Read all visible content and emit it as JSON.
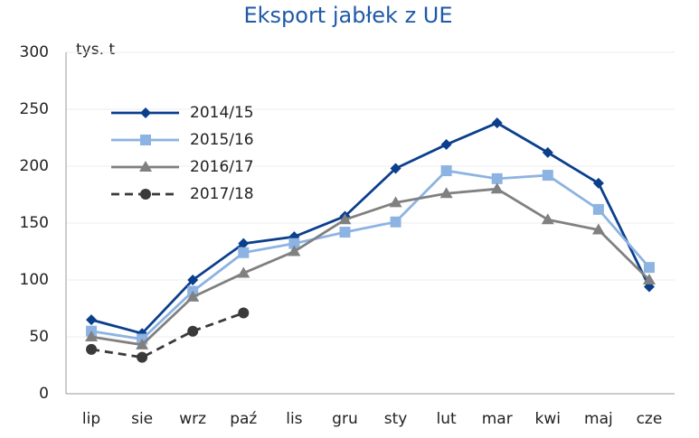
{
  "chart_data": {
    "type": "line",
    "title": "Eksport jabłek z UE",
    "y_label": "tys. t",
    "categories": [
      "lip",
      "sie",
      "wrz",
      "paź",
      "lis",
      "gru",
      "sty",
      "lut",
      "mar",
      "kwi",
      "maj",
      "cze"
    ],
    "series": [
      {
        "name": "2014/15",
        "color": "#0b3f8c",
        "marker": "diamond",
        "dash": false,
        "values": [
          65,
          53,
          100,
          132,
          138,
          156,
          198,
          219,
          238,
          212,
          185,
          94
        ]
      },
      {
        "name": "2015/16",
        "color": "#8db3e2",
        "marker": "square",
        "dash": false,
        "values": [
          55,
          48,
          90,
          124,
          132,
          142,
          151,
          196,
          189,
          192,
          162,
          111
        ]
      },
      {
        "name": "2016/17",
        "color": "#808080",
        "marker": "triangle",
        "dash": false,
        "values": [
          50,
          43,
          85,
          106,
          125,
          153,
          168,
          176,
          180,
          153,
          144,
          100
        ]
      },
      {
        "name": "2017/18",
        "color": "#3a3a3a",
        "marker": "circle",
        "dash": true,
        "values": [
          39,
          32,
          55,
          71,
          null,
          null,
          null,
          null,
          null,
          null,
          null,
          null
        ]
      }
    ],
    "ylim": [
      0,
      300
    ],
    "yticks": [
      0,
      50,
      100,
      150,
      200,
      250,
      300
    ],
    "grid": true,
    "legend": "upper left"
  }
}
